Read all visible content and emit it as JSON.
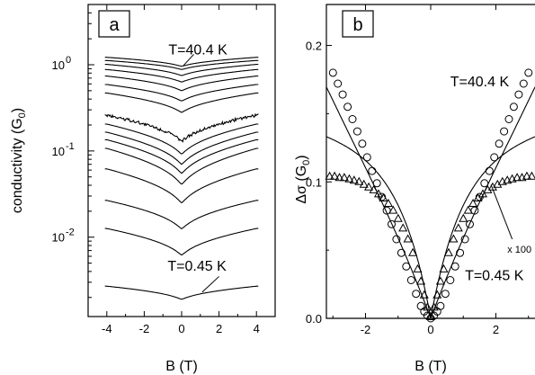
{
  "chart_data": [
    {
      "panel": "a",
      "type": "line",
      "panel_label": "a",
      "xlabel": "B (T)",
      "ylabel": "conductivity (G₀)",
      "ylabel_main": "conductivity (G",
      "ylabel_sub": "0",
      "ylabel_end": ")",
      "xlim": [
        -5,
        5
      ],
      "ylim": [
        0.0012,
        5
      ],
      "yscale": "log",
      "x_ticks": [
        -4,
        -2,
        0,
        2,
        4
      ],
      "x_tick_labels": [
        "-4",
        "-2",
        "0",
        "2",
        "4"
      ],
      "y_ticks": [
        {
          "value": 1,
          "base": "10",
          "exp": "0"
        },
        {
          "value": 0.1,
          "base": "10",
          "exp": "-1"
        },
        {
          "value": 0.01,
          "base": "10",
          "exp": "-2"
        }
      ],
      "annotations": [
        {
          "text": "T=40.4 K",
          "x": 0.5,
          "y": 1.35
        },
        {
          "text": "T=0.45 K",
          "x": 0.45,
          "y": 0.0042
        }
      ],
      "series": [
        {
          "values_at": {
            "B0": 0.96,
            "B4": 1.22
          }
        },
        {
          "values_at": {
            "B0": 0.88,
            "B4": 1.12
          }
        },
        {
          "values_at": {
            "B0": 0.75,
            "B4": 1.01
          }
        },
        {
          "values_at": {
            "B0": 0.63,
            "B4": 0.88
          }
        },
        {
          "values_at": {
            "B0": 0.5,
            "B4": 0.74
          }
        },
        {
          "values_at": {
            "B0": 0.38,
            "B4": 0.59
          }
        },
        {
          "values_at": {
            "B0": 0.28,
            "B4": 0.47
          }
        },
        {
          "values_at": {
            "B0": 0.13,
            "B4": 0.26
          },
          "noisy": true
        },
        {
          "values_at": {
            "B0": 0.092,
            "B4": 0.205
          }
        },
        {
          "values_at": {
            "B0": 0.07,
            "B4": 0.165
          }
        },
        {
          "values_at": {
            "B0": 0.055,
            "B4": 0.135
          }
        },
        {
          "values_at": {
            "B0": 0.041,
            "B4": 0.107
          }
        },
        {
          "values_at": {
            "B0": 0.025,
            "B4": 0.062
          }
        },
        {
          "values_at": {
            "B0": 0.0125,
            "B4": 0.0267
          }
        },
        {
          "values_at": {
            "B0": 0.0062,
            "B4": 0.0126
          }
        },
        {
          "values_at": {
            "B0": 0.0019,
            "B4": 0.0027
          }
        }
      ]
    },
    {
      "panel": "b",
      "type": "scatter",
      "panel_label": "b",
      "xlabel": "B (T)",
      "ylabel": "Δσ (G₀)",
      "ylabel_main": "Δσ (G",
      "ylabel_sub": "0",
      "ylabel_end": ")",
      "xlim": [
        -3.2,
        3.2
      ],
      "ylim": [
        0,
        0.23
      ],
      "x_ticks": [
        -2,
        0,
        2
      ],
      "x_tick_labels": [
        "-2",
        "0",
        "2"
      ],
      "y_ticks": [
        0.0,
        0.1,
        0.2
      ],
      "y_tick_labels": [
        "0.0",
        "0.1",
        "0.2"
      ],
      "annotations": [
        {
          "text": "T=40.4 K",
          "x": 0.6,
          "y": 0.17
        },
        {
          "text": "T=0.45 K",
          "x": 1.05,
          "y": 0.028
        },
        {
          "text": "x 100",
          "x": 2.35,
          "y": 0.048
        }
      ],
      "series": [
        {
          "marker": "circle",
          "x": [
            -3.0,
            -2.85,
            -2.7,
            -2.55,
            -2.4,
            -2.25,
            -2.1,
            -1.95,
            -1.8,
            -1.65,
            -1.5,
            -1.35,
            -1.2,
            -1.05,
            -0.9,
            -0.75,
            -0.6,
            -0.45,
            -0.3,
            -0.2,
            -0.1,
            0.0,
            0.1,
            0.2,
            0.3,
            0.45,
            0.6,
            0.75,
            0.9,
            1.05,
            1.2,
            1.35,
            1.5,
            1.65,
            1.8,
            1.95,
            2.1,
            2.25,
            2.4,
            2.55,
            2.7,
            2.85,
            3.0
          ],
          "y": [
            0.18,
            0.172,
            0.164,
            0.155,
            0.146,
            0.137,
            0.128,
            0.118,
            0.108,
            0.099,
            0.089,
            0.079,
            0.069,
            0.058,
            0.048,
            0.038,
            0.028,
            0.018,
            0.009,
            0.005,
            0.002,
            0.0,
            0.002,
            0.005,
            0.009,
            0.018,
            0.028,
            0.038,
            0.048,
            0.058,
            0.069,
            0.079,
            0.089,
            0.099,
            0.108,
            0.118,
            0.128,
            0.137,
            0.146,
            0.155,
            0.164,
            0.172,
            0.18
          ]
        },
        {
          "marker": "triangle",
          "x": [
            -3.1,
            -2.95,
            -2.8,
            -2.65,
            -2.5,
            -2.35,
            -2.2,
            -2.05,
            -1.9,
            -1.75,
            -1.6,
            -1.45,
            -1.3,
            -1.15,
            -1.0,
            -0.85,
            -0.7,
            -0.55,
            -0.4,
            -0.3,
            -0.2,
            -0.1,
            0.0,
            0.1,
            0.2,
            0.3,
            0.4,
            0.55,
            0.7,
            0.85,
            1.0,
            1.15,
            1.3,
            1.45,
            1.6,
            1.75,
            1.9,
            2.05,
            2.2,
            2.35,
            2.5,
            2.65,
            2.8,
            2.95,
            3.1
          ],
          "y": [
            0.104,
            0.104,
            0.103,
            0.103,
            0.102,
            0.101,
            0.1,
            0.098,
            0.096,
            0.094,
            0.091,
            0.088,
            0.084,
            0.079,
            0.073,
            0.066,
            0.058,
            0.048,
            0.036,
            0.027,
            0.017,
            0.008,
            0.001,
            0.008,
            0.017,
            0.027,
            0.036,
            0.048,
            0.058,
            0.066,
            0.073,
            0.079,
            0.084,
            0.088,
            0.091,
            0.094,
            0.096,
            0.098,
            0.1,
            0.101,
            0.102,
            0.103,
            0.103,
            0.104,
            0.104
          ]
        }
      ]
    }
  ]
}
